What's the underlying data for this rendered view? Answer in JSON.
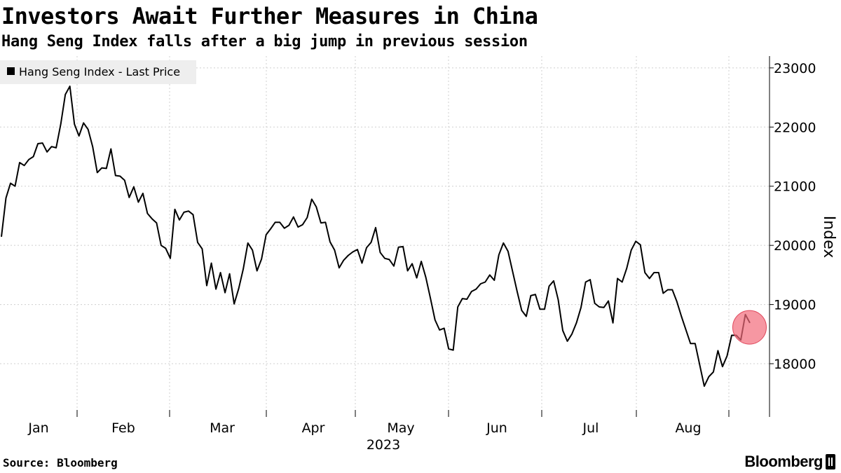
{
  "header": {
    "title": "Investors Await Further Measures in China",
    "subtitle": "Hang Seng Index falls after a big jump in previous session"
  },
  "footer": {
    "source": "Source: Bloomberg",
    "brand": "Bloomberg"
  },
  "chart_data": {
    "type": "line",
    "series": [
      {
        "name": "Hang Seng Index - Last Price",
        "color": "#000000",
        "values": [
          20145,
          20800,
          21050,
          21000,
          21400,
          21350,
          21450,
          21500,
          21720,
          21730,
          21580,
          21670,
          21650,
          22050,
          22550,
          22690,
          22050,
          21850,
          22070,
          21960,
          21670,
          21230,
          21310,
          21300,
          21630,
          21180,
          21170,
          21100,
          20810,
          20990,
          20730,
          20880,
          20540,
          20450,
          20380,
          20000,
          19950,
          19780,
          20610,
          20430,
          20560,
          20580,
          20520,
          20050,
          19940,
          19320,
          19700,
          19260,
          19540,
          19200,
          19520,
          19010,
          19270,
          19600,
          20040,
          19920,
          19570,
          19770,
          20180,
          20280,
          20390,
          20390,
          20290,
          20340,
          20480,
          20310,
          20350,
          20470,
          20780,
          20650,
          20380,
          20390,
          20060,
          19920,
          19620,
          19750,
          19830,
          19890,
          19930,
          19700,
          19960,
          20050,
          20300,
          19880,
          19780,
          19760,
          19650,
          19970,
          19980,
          19570,
          19690,
          19450,
          19730,
          19460,
          19110,
          18740,
          18570,
          18600,
          18250,
          18230,
          18960,
          19100,
          19090,
          19220,
          19260,
          19350,
          19380,
          19500,
          19410,
          19840,
          20040,
          19900,
          19560,
          19220,
          18900,
          18800,
          19150,
          19170,
          18920,
          18920,
          19310,
          19400,
          19080,
          18560,
          18380,
          18500,
          18690,
          18950,
          19380,
          19420,
          19020,
          18960,
          18950,
          19060,
          18690,
          19440,
          19380,
          19610,
          19920,
          20070,
          20010,
          19540,
          19440,
          19540,
          19540,
          19190,
          19250,
          19250,
          19050,
          18800,
          18570,
          18340,
          18340,
          17980,
          17620,
          17780,
          17860,
          18220,
          17950,
          18130,
          18480,
          18480,
          18400,
          18830,
          18690
        ],
        "last_point_highlighted": true
      }
    ],
    "x": {
      "tick_labels": [
        "Jan",
        "Feb",
        "Mar",
        "Apr",
        "May",
        "Jun",
        "Jul",
        "Aug"
      ],
      "year_label": "2023"
    },
    "y": {
      "label": "Index",
      "ticks": [
        18000,
        19000,
        20000,
        21000,
        22000,
        23000
      ],
      "ylim": [
        17100,
        23200
      ],
      "side": "right"
    },
    "grid": true,
    "legend": "top-left",
    "highlight_color": "#f26b7a"
  }
}
